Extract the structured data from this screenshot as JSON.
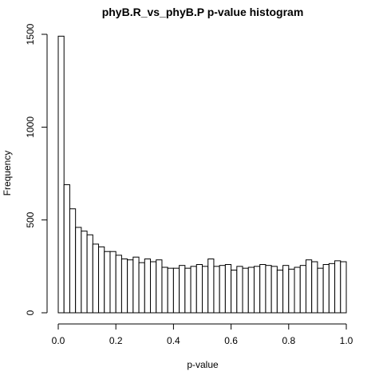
{
  "chart_data": {
    "type": "bar",
    "title": "phyB.R_vs_phyB.P p-value histogram",
    "xlabel": "p-value",
    "ylabel": "Frequency",
    "xlim": [
      0,
      1
    ],
    "ylim": [
      0,
      1500
    ],
    "xticks": [
      "0.0",
      "0.2",
      "0.4",
      "0.6",
      "0.8",
      "1.0"
    ],
    "yticks": [
      "0",
      "500",
      "1000",
      "1500"
    ],
    "bin_width": 0.02,
    "bin_edges_start": 0,
    "values": [
      1490,
      690,
      560,
      460,
      440,
      420,
      370,
      355,
      330,
      330,
      310,
      290,
      285,
      300,
      270,
      290,
      275,
      285,
      245,
      240,
      240,
      255,
      240,
      250,
      260,
      250,
      290,
      250,
      255,
      260,
      230,
      250,
      240,
      245,
      250,
      260,
      255,
      250,
      230,
      255,
      235,
      245,
      255,
      285,
      275,
      240,
      260,
      265,
      280,
      275
    ]
  }
}
